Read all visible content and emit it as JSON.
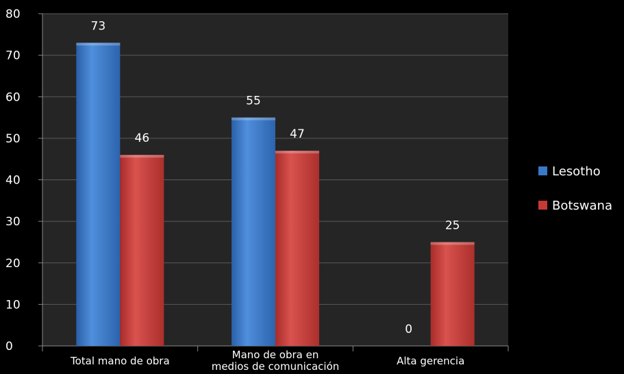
{
  "chart_data": {
    "type": "bar",
    "categories": [
      "Total mano de obra",
      "Mano de obra en medios de comunicación",
      "Alta gerencia"
    ],
    "category_label_lines": [
      [
        "Total mano de obra"
      ],
      [
        "Mano de obra en",
        "medios de comunicación"
      ],
      [
        "Alta gerencia"
      ]
    ],
    "series": [
      {
        "name": "Lesotho",
        "values": [
          73,
          55,
          0
        ],
        "color": "#3a78c8"
      },
      {
        "name": "Botswana",
        "values": [
          46,
          47,
          25
        ],
        "color": "#c63a36"
      }
    ],
    "ylim": [
      0,
      80
    ],
    "yticks": [
      0,
      10,
      20,
      30,
      40,
      50,
      60,
      70,
      80
    ],
    "grid": true,
    "legend_position": "right",
    "data_labels": true
  },
  "colors": {
    "background": "#000000",
    "plot_background": "#252525",
    "text": "#ffffff"
  }
}
